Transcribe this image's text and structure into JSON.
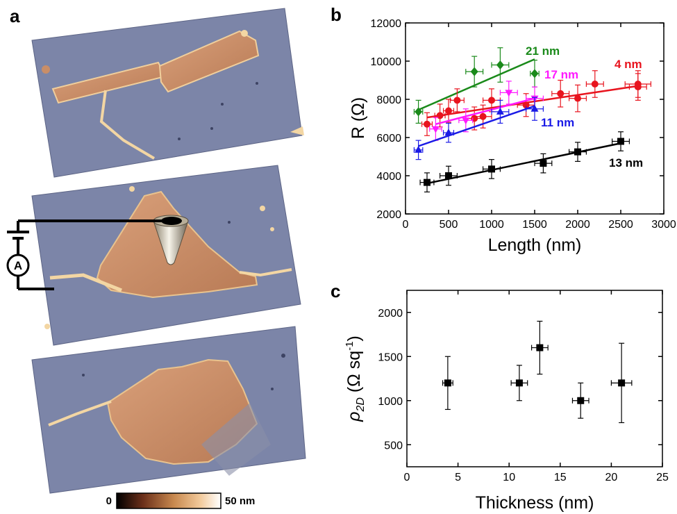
{
  "panel_labels": {
    "a": "a",
    "b": "b",
    "c": "c"
  },
  "colorbar": {
    "min_label": "0",
    "max_label": "50 nm",
    "colors": [
      "#000000",
      "#6b2f1a",
      "#c8894f",
      "#f2c99a",
      "#ffffff"
    ]
  },
  "circuit": {
    "ammeter_label": "A"
  },
  "afm_colors": {
    "substrate": "#7d86a8",
    "flake": "#c98e68",
    "ridge": "#f3d6a3"
  },
  "chart_data": [
    {
      "type": "scatter",
      "panel": "b",
      "title": "",
      "xlabel": "Length (nm)",
      "ylabel": "R (Ω)",
      "xlim": [
        0,
        3000
      ],
      "ylim": [
        2000,
        12000
      ],
      "xticks": [
        "0",
        "500",
        "1000",
        "1500",
        "2000",
        "2500",
        "3000"
      ],
      "yticks": [
        "2000",
        "4000",
        "6000",
        "8000",
        "10000",
        "12000"
      ],
      "series": [
        {
          "name": "21 nm",
          "color": "#1a8a1a",
          "marker": "diamond",
          "points": [
            {
              "x": 150,
              "y": 7350,
              "xerr": 50,
              "yerr": 600
            },
            {
              "x": 800,
              "y": 9450,
              "xerr": 100,
              "yerr": 800
            },
            {
              "x": 1100,
              "y": 9800,
              "xerr": 100,
              "yerr": 900
            },
            {
              "x": 1500,
              "y": 9350,
              "xerr": 50,
              "yerr": 700
            }
          ],
          "fit": [
            [
              150,
              7450
            ],
            [
              1500,
              10100
            ]
          ]
        },
        {
          "name": "4 nm",
          "color": "#e8141e",
          "marker": "circle",
          "points": [
            {
              "x": 250,
              "y": 6700,
              "xerr": 60,
              "yerr": 600
            },
            {
              "x": 400,
              "y": 7150,
              "xerr": 60,
              "yerr": 600
            },
            {
              "x": 500,
              "y": 7400,
              "xerr": 60,
              "yerr": 600
            },
            {
              "x": 600,
              "y": 7950,
              "xerr": 80,
              "yerr": 600
            },
            {
              "x": 800,
              "y": 7000,
              "xerr": 100,
              "yerr": 600
            },
            {
              "x": 900,
              "y": 7100,
              "xerr": 100,
              "yerr": 600
            },
            {
              "x": 1000,
              "y": 7950,
              "xerr": 100,
              "yerr": 600
            },
            {
              "x": 1400,
              "y": 7700,
              "xerr": 100,
              "yerr": 600
            },
            {
              "x": 1800,
              "y": 8300,
              "xerr": 100,
              "yerr": 700
            },
            {
              "x": 2000,
              "y": 8050,
              "xerr": 100,
              "yerr": 700
            },
            {
              "x": 2200,
              "y": 8800,
              "xerr": 100,
              "yerr": 700
            },
            {
              "x": 2700,
              "y": 8650,
              "xerr": 100,
              "yerr": 700
            },
            {
              "x": 2700,
              "y": 8800,
              "xerr": 150,
              "yerr": 700
            }
          ],
          "fit": [
            [
              250,
              7050
            ],
            [
              2700,
              8700
            ]
          ]
        },
        {
          "name": "17 nm",
          "color": "#ff1aff",
          "marker": "triangle-down",
          "points": [
            {
              "x": 350,
              "y": 6450,
              "xerr": 70,
              "yerr": 600
            },
            {
              "x": 700,
              "y": 6900,
              "xerr": 80,
              "yerr": 600
            },
            {
              "x": 1200,
              "y": 8350,
              "xerr": 100,
              "yerr": 600
            },
            {
              "x": 1500,
              "y": 8050,
              "xerr": 100,
              "yerr": 600
            }
          ],
          "fit": [
            [
              350,
              6700
            ],
            [
              1500,
              8050
            ]
          ]
        },
        {
          "name": "11 nm",
          "color": "#1a1ae6",
          "marker": "triangle",
          "points": [
            {
              "x": 150,
              "y": 5350,
              "xerr": 50,
              "yerr": 500
            },
            {
              "x": 500,
              "y": 6250,
              "xerr": 60,
              "yerr": 500
            },
            {
              "x": 1100,
              "y": 7350,
              "xerr": 100,
              "yerr": 600
            },
            {
              "x": 1500,
              "y": 7500,
              "xerr": 100,
              "yerr": 600
            }
          ],
          "fit": [
            [
              150,
              5550
            ],
            [
              1500,
              7650
            ]
          ]
        },
        {
          "name": "13 nm",
          "color": "#000000",
          "marker": "square",
          "points": [
            {
              "x": 250,
              "y": 3650,
              "xerr": 80,
              "yerr": 500
            },
            {
              "x": 500,
              "y": 4000,
              "xerr": 100,
              "yerr": 500
            },
            {
              "x": 1000,
              "y": 4350,
              "xerr": 100,
              "yerr": 500
            },
            {
              "x": 1600,
              "y": 4650,
              "xerr": 100,
              "yerr": 500
            },
            {
              "x": 2000,
              "y": 5250,
              "xerr": 100,
              "yerr": 500
            },
            {
              "x": 2500,
              "y": 5800,
              "xerr": 100,
              "yerr": 500
            }
          ],
          "fit": [
            [
              250,
              3600
            ],
            [
              2500,
              5700
            ]
          ]
        }
      ]
    },
    {
      "type": "scatter",
      "panel": "c",
      "title": "",
      "xlabel": "Thickness (nm)",
      "ylabel": "ρ2D (Ω sq-1)",
      "ylabel_parts": {
        "symbol": "ρ",
        "sub": "2D",
        "unit_open": " (Ω sq",
        "sup": "-1",
        "unit_close": ")"
      },
      "xlim": [
        0,
        25
      ],
      "ylim": [
        250,
        2250
      ],
      "xticks": [
        "0",
        "5",
        "10",
        "15",
        "20",
        "25"
      ],
      "yticks": [
        "500",
        "1000",
        "1500",
        "2000"
      ],
      "series": [
        {
          "color": "#000000",
          "marker": "square",
          "points": [
            {
              "x": 4,
              "y": 1200,
              "xerr": 0.5,
              "yerr": 300
            },
            {
              "x": 11,
              "y": 1200,
              "xerr": 0.8,
              "yerr": 200
            },
            {
              "x": 13,
              "y": 1600,
              "xerr": 0.8,
              "yerr": 300
            },
            {
              "x": 17,
              "y": 1000,
              "xerr": 0.8,
              "yerr": 200
            },
            {
              "x": 21,
              "y": 1200,
              "xerr": 1.0,
              "yerr": 450
            }
          ]
        }
      ]
    }
  ]
}
